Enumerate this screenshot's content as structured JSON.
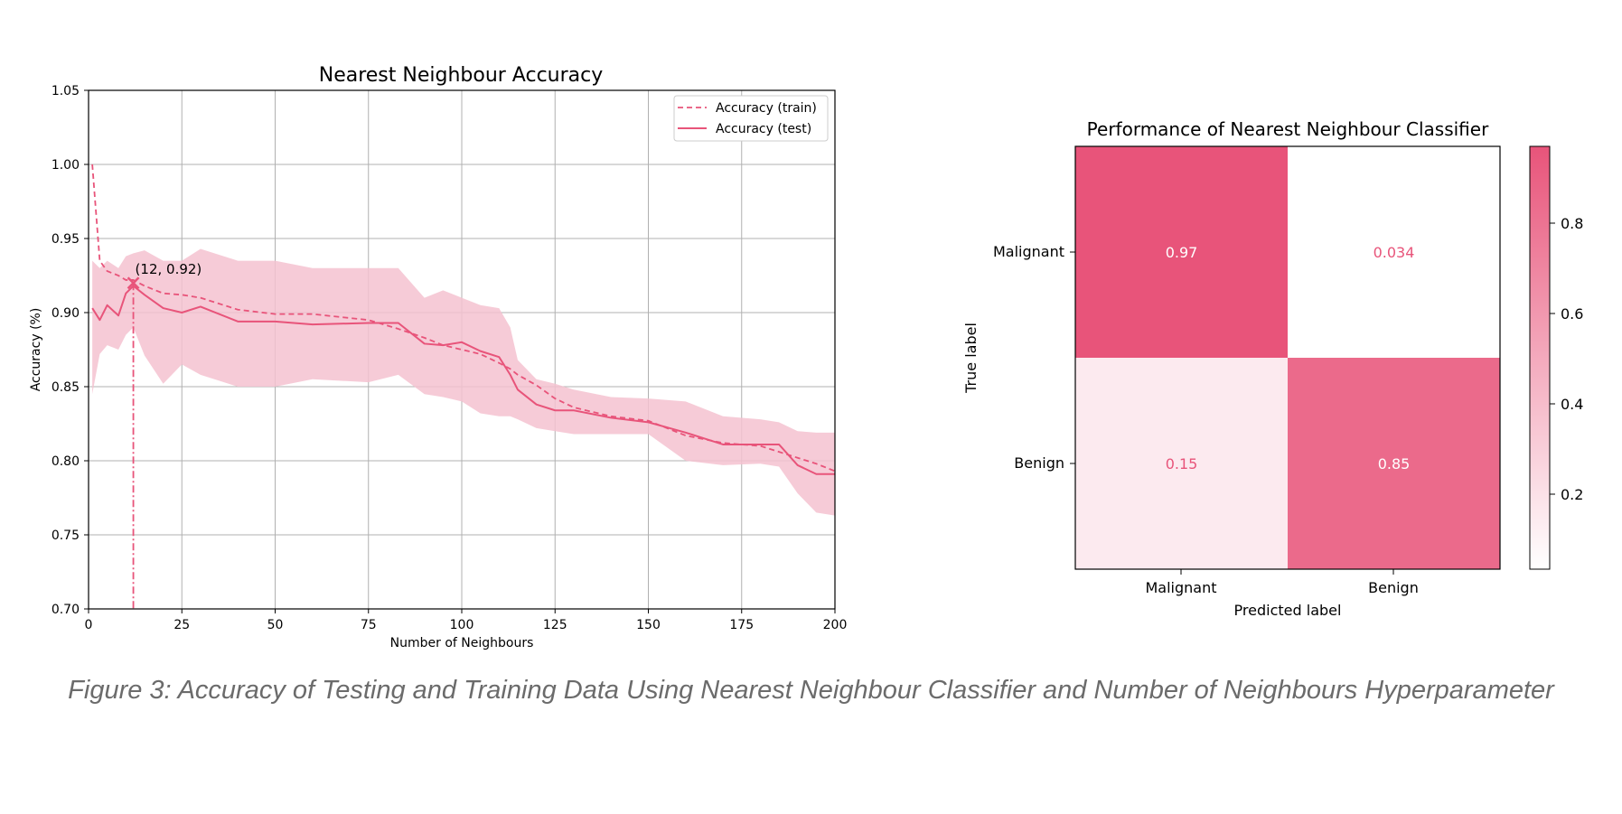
{
  "caption": "Figure 3: Accuracy of Testing and Training Data Using Nearest Neighbour Classifier and Number of Neighbours Hyperparameter",
  "colors": {
    "accent": "#e8547a",
    "band": "#f5c2d0",
    "grid": "#b0b0b0",
    "cmap_low": "#ffffff",
    "cmap_high": "#e8547a"
  },
  "chart_data": [
    {
      "type": "line",
      "title": "Nearest Neighbour Accuracy",
      "xlabel": "Number of Neighbours",
      "ylabel": "Accuracy (%)",
      "xlim": [
        0,
        200
      ],
      "ylim": [
        0.7,
        1.05
      ],
      "xticks": [
        0,
        25,
        50,
        75,
        100,
        125,
        150,
        175,
        200
      ],
      "yticks": [
        0.7,
        0.75,
        0.8,
        0.85,
        0.9,
        0.95,
        1.0,
        1.05
      ],
      "ytick_labels": [
        "0.70",
        "0.75",
        "0.80",
        "0.85",
        "0.90",
        "0.95",
        "1.00",
        "1.05"
      ],
      "grid": true,
      "legend_position": "top-right",
      "x": [
        1,
        3,
        5,
        8,
        10,
        12,
        15,
        20,
        25,
        30,
        40,
        50,
        60,
        75,
        83,
        90,
        95,
        100,
        105,
        110,
        113,
        115,
        120,
        125,
        130,
        140,
        150,
        160,
        170,
        180,
        185,
        190,
        195,
        200
      ],
      "series": [
        {
          "name": "Accuracy (train)",
          "style": "dashed",
          "values": [
            1.0,
            0.935,
            0.928,
            0.925,
            0.922,
            0.922,
            0.918,
            0.913,
            0.912,
            0.91,
            0.902,
            0.899,
            0.899,
            0.895,
            0.889,
            0.883,
            0.878,
            0.875,
            0.872,
            0.866,
            0.862,
            0.858,
            0.851,
            0.842,
            0.836,
            0.83,
            0.827,
            0.817,
            0.812,
            0.81,
            0.806,
            0.802,
            0.798,
            0.793
          ]
        },
        {
          "name": "Accuracy (test)",
          "style": "solid",
          "values": [
            0.903,
            0.895,
            0.905,
            0.898,
            0.913,
            0.918,
            0.912,
            0.903,
            0.9,
            0.904,
            0.894,
            0.894,
            0.892,
            0.893,
            0.893,
            0.879,
            0.878,
            0.88,
            0.874,
            0.87,
            0.858,
            0.848,
            0.838,
            0.834,
            0.834,
            0.829,
            0.826,
            0.819,
            0.811,
            0.811,
            0.811,
            0.797,
            0.791,
            0.791
          ]
        }
      ],
      "band": {
        "lower": [
          0.845,
          0.872,
          0.878,
          0.875,
          0.885,
          0.89,
          0.871,
          0.852,
          0.865,
          0.858,
          0.85,
          0.85,
          0.855,
          0.853,
          0.858,
          0.845,
          0.843,
          0.84,
          0.832,
          0.83,
          0.83,
          0.828,
          0.822,
          0.82,
          0.818,
          0.818,
          0.818,
          0.8,
          0.797,
          0.798,
          0.796,
          0.778,
          0.765,
          0.763
        ],
        "upper": [
          0.935,
          0.93,
          0.935,
          0.93,
          0.938,
          0.94,
          0.942,
          0.935,
          0.935,
          0.943,
          0.935,
          0.935,
          0.93,
          0.93,
          0.93,
          0.91,
          0.915,
          0.91,
          0.905,
          0.903,
          0.89,
          0.868,
          0.855,
          0.852,
          0.848,
          0.843,
          0.842,
          0.84,
          0.83,
          0.828,
          0.826,
          0.82,
          0.819,
          0.819
        ]
      },
      "annotation": {
        "x": 12,
        "y": 0.92,
        "text": "(12, 0.92)"
      }
    },
    {
      "type": "heatmap",
      "title": "Performance of Nearest Neighbour Classifier",
      "xlabel": "Predicted label",
      "ylabel": "True label",
      "row_labels": [
        "Malignant",
        "Benign"
      ],
      "col_labels": [
        "Malignant",
        "Benign"
      ],
      "values": [
        [
          0.97,
          0.034
        ],
        [
          0.15,
          0.85
        ]
      ],
      "cell_text": [
        [
          "0.97",
          "0.034"
        ],
        [
          "0.15",
          "0.85"
        ]
      ],
      "colorbar": {
        "range": [
          0.034,
          0.97
        ],
        "ticks": [
          0.2,
          0.4,
          0.6,
          0.8
        ],
        "tick_labels": [
          "0.2",
          "0.4",
          "0.6",
          "0.8"
        ]
      }
    }
  ]
}
